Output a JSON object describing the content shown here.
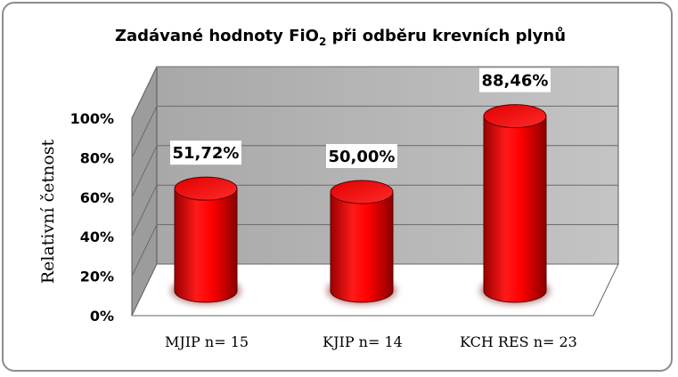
{
  "chart_data": {
    "type": "bar",
    "style": "3d-cylinder",
    "title": {
      "main": "Zadávané hodnoty FiO",
      "subscript": "2",
      "rest": " při odběru  krevních plynů"
    },
    "ylabel": "Relativní četnost",
    "xlabel": "",
    "categories": [
      "MJIP n= 15",
      "KJIP n= 14",
      "KCH RES n= 23"
    ],
    "values": [
      51.72,
      50.0,
      88.46
    ],
    "data_labels": [
      "51,72%",
      "50,00%",
      "88,46%"
    ],
    "y_ticks": [
      "0%",
      "20%",
      "40%",
      "60%",
      "80%",
      "100%"
    ],
    "ylim": [
      0,
      100
    ],
    "grid": true,
    "legend": "none",
    "colors": {
      "bar": "#ff0000",
      "bar_dark": "#b30000",
      "wall": "#c0c0c0",
      "floor": "#ffffff",
      "frame": "#8c8c8c"
    }
  }
}
